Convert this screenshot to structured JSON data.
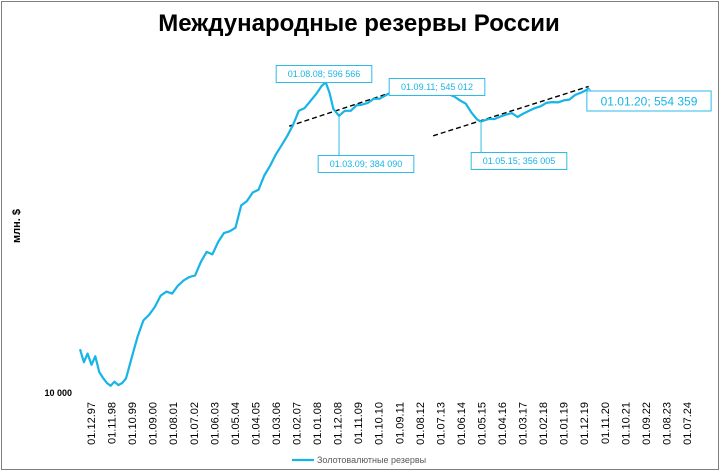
{
  "chart_data": {
    "type": "line",
    "title": "Международные резервы России",
    "ylabel": "млн. $",
    "y_tick_labels": [
      "10 000"
    ],
    "y_tick_values": [
      10000
    ],
    "x_tick_labels": [
      "01.12.97",
      "01.11.98",
      "01.10.99",
      "01.09.00",
      "01.08.01",
      "01.07.02",
      "01.06.03",
      "01.05.04",
      "01.04.05",
      "01.03.06",
      "01.02.07",
      "01.01.08",
      "01.12.08",
      "01.11.09",
      "01.10.10",
      "01.09.11",
      "01.08.12",
      "01.07.13",
      "01.06.14",
      "01.05.15",
      "01.04.16",
      "01.03.17",
      "01.02.18",
      "01.01.19",
      "01.12.19",
      "01.11.20",
      "01.10.21",
      "01.09.22",
      "01.08.23",
      "01.07.24"
    ],
    "scale": "log",
    "ylim": [
      10000,
      800000
    ],
    "xlim": [
      "1997-12-01",
      "2024-11-01"
    ],
    "legend": {
      "position": "bottom",
      "entries": [
        "Золотовалютные резервы"
      ]
    },
    "colors": {
      "series": "#17b4e6",
      "trend": "#000000"
    },
    "series": [
      {
        "name": "Золотовалютные резервы",
        "x": [
          "1997-12-01",
          "1998-02-01",
          "1998-04-01",
          "1998-06-01",
          "1998-08-01",
          "1998-10-01",
          "1998-12-01",
          "1999-02-01",
          "1999-04-01",
          "1999-06-01",
          "1999-08-01",
          "1999-10-01",
          "1999-12-01",
          "2000-03-01",
          "2000-06-01",
          "2000-09-01",
          "2000-12-01",
          "2001-03-01",
          "2001-06-01",
          "2001-09-01",
          "2001-12-01",
          "2002-03-01",
          "2002-06-01",
          "2002-09-01",
          "2002-12-01",
          "2003-03-01",
          "2003-06-01",
          "2003-09-01",
          "2003-12-01",
          "2004-03-01",
          "2004-06-01",
          "2004-09-01",
          "2004-12-01",
          "2005-03-01",
          "2005-06-01",
          "2005-09-01",
          "2005-12-01",
          "2006-03-01",
          "2006-06-01",
          "2006-09-01",
          "2006-12-01",
          "2007-03-01",
          "2007-06-01",
          "2007-09-01",
          "2007-12-01",
          "2008-03-01",
          "2008-06-01",
          "2008-08-01",
          "2008-10-01",
          "2008-12-01",
          "2009-03-01",
          "2009-06-01",
          "2009-09-01",
          "2009-12-01",
          "2010-03-01",
          "2010-06-01",
          "2010-09-01",
          "2010-12-01",
          "2011-03-01",
          "2011-06-01",
          "2011-09-01",
          "2011-12-01",
          "2012-03-01",
          "2012-06-01",
          "2012-09-01",
          "2012-12-01",
          "2013-03-01",
          "2013-06-01",
          "2013-09-01",
          "2013-12-01",
          "2014-03-01",
          "2014-06-01",
          "2014-09-01",
          "2014-12-01",
          "2015-03-01",
          "2015-05-01",
          "2015-09-01",
          "2015-12-01",
          "2016-03-01",
          "2016-06-01",
          "2016-09-01",
          "2016-12-01",
          "2017-03-01",
          "2017-06-01",
          "2017-09-01",
          "2017-12-01",
          "2018-03-01",
          "2018-06-01",
          "2018-09-01",
          "2018-12-01",
          "2019-03-01",
          "2019-06-01",
          "2019-09-01",
          "2019-12-01",
          "2020-01-01"
        ],
        "values": [
          17800,
          15000,
          16800,
          14500,
          16200,
          13200,
          12200,
          11400,
          11000,
          11600,
          11100,
          11400,
          12100,
          16000,
          21000,
          26000,
          28000,
          31000,
          36000,
          38000,
          37000,
          41000,
          44000,
          46000,
          47000,
          56000,
          64000,
          62000,
          73000,
          82000,
          84000,
          88000,
          118000,
          125000,
          140000,
          145000,
          175000,
          198000,
          230000,
          260000,
          295000,
          340000,
          410000,
          425000,
          465000,
          510000,
          570000,
          596566,
          520000,
          420000,
          384090,
          410000,
          410000,
          440000,
          445000,
          455000,
          480000,
          480000,
          500000,
          524000,
          545012,
          505000,
          510000,
          515000,
          520000,
          525000,
          528000,
          520000,
          515000,
          510000,
          495000,
          470000,
          450000,
          400000,
          365000,
          356005,
          368000,
          368000,
          380000,
          390000,
          398000,
          378000,
          395000,
          410000,
          425000,
          435000,
          455000,
          460000,
          458000,
          470000,
          475000,
          505000,
          520000,
          540000,
          554359
        ]
      }
    ],
    "trend_lines": [
      {
        "x": [
          "2007-01-01",
          "2012-09-01"
        ],
        "y": [
          335000,
          590000
        ]
      },
      {
        "x": [
          "2013-04-01",
          "2020-01-01"
        ],
        "y": [
          295000,
          565000
        ]
      }
    ],
    "annotations": [
      {
        "x": "2008-08-01",
        "y": 596566,
        "label": "01.08.08; 596 566"
      },
      {
        "x": "2009-03-01",
        "y": 384090,
        "label": "01.03.09; 384 090"
      },
      {
        "x": "2011-09-01",
        "y": 545012,
        "label": "01.09.11; 545 012"
      },
      {
        "x": "2015-05-01",
        "y": 356005,
        "label": "01.05.15; 356 005"
      },
      {
        "x": "2020-01-01",
        "y": 554359,
        "label": "01.01.20; 554 359"
      }
    ]
  }
}
